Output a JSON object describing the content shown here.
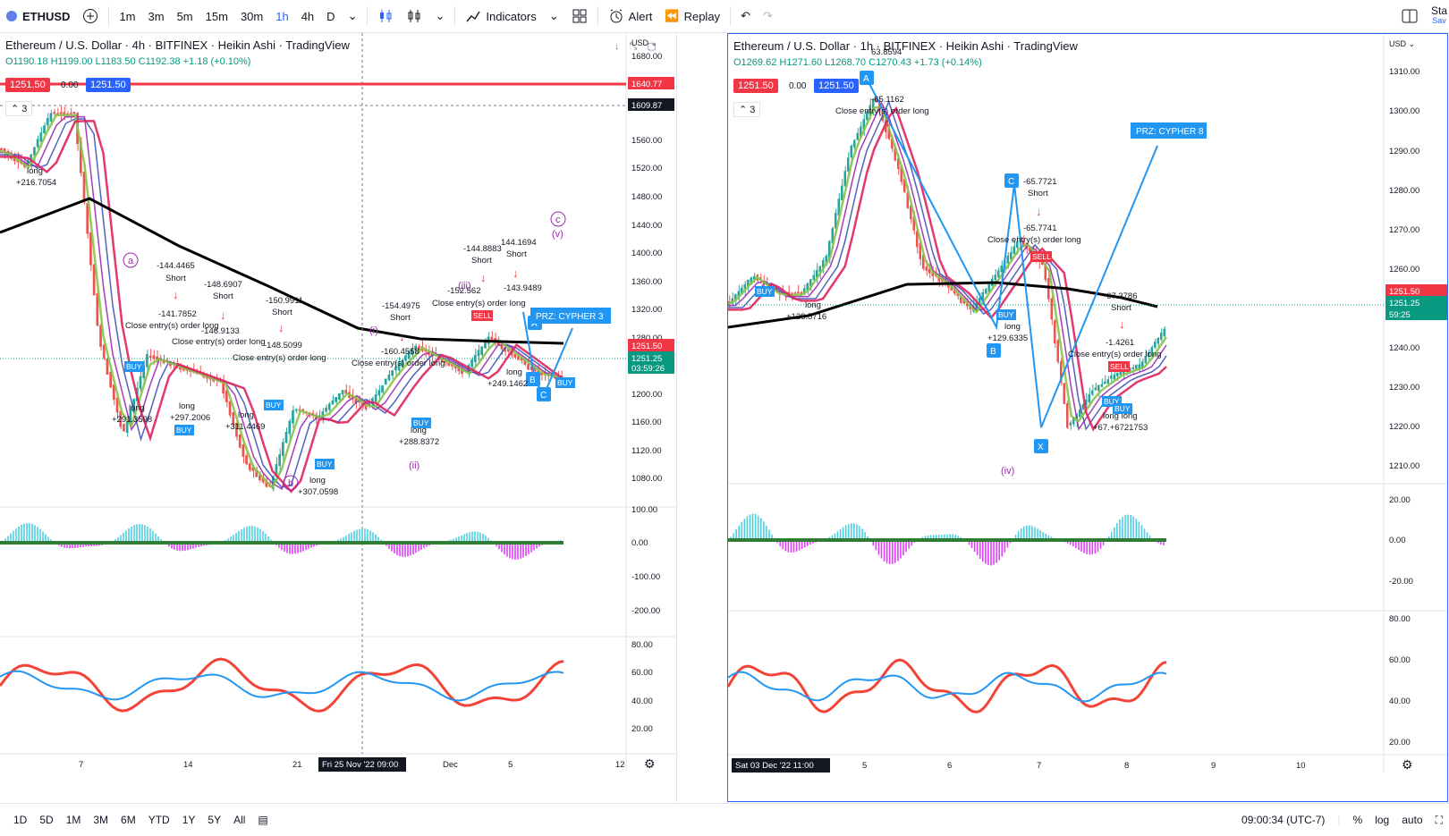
{
  "toolbar": {
    "symbol": "ETHUSD",
    "intervals": [
      "1m",
      "3m",
      "5m",
      "15m",
      "30m",
      "1h",
      "4h",
      "D"
    ],
    "active_interval": "1h",
    "indicators_label": "Indicators",
    "alert_label": "Alert",
    "replay_label": "Replay",
    "right_label": "Sta",
    "right_sub": "Sav"
  },
  "left_chart": {
    "title": "Ethereum / U.S. Dollar · 4h · BITFINEX · Heikin Ashi · TradingView",
    "ohlc": {
      "o": "O1190.18",
      "h": "H1199.00",
      "l": "L1183.50",
      "c": "C1192.38",
      "chg": "+1.18 (+0.10%)"
    },
    "sell_price": "1251.50",
    "spread": "0.00",
    "buy_price": "1251.50",
    "indicator_count": "3",
    "axis_currency": "USD",
    "price_ticks": [
      "1680.00",
      "1640.77",
      "1609.87",
      "1560.00",
      "1520.00",
      "1480.00",
      "1440.00",
      "1400.00",
      "1360.00",
      "1320.00",
      "1280.00",
      "1251.50",
      "1251.25",
      "03:59:26",
      "1200.00",
      "1160.00",
      "1120.00",
      "1080.00"
    ],
    "macd_ticks": [
      "100.00",
      "0.00",
      "-100.00",
      "-200.00"
    ],
    "rsi_ticks": [
      "80.00",
      "60.00",
      "40.00",
      "20.00"
    ],
    "time_ticks": [
      "7",
      "14",
      "21",
      "Fri 25 Nov '22  09:00",
      "Dec",
      "5",
      "12"
    ],
    "annotations": [
      {
        "text": "long",
        "cls": "t"
      },
      {
        "text": "+216.7054",
        "cls": "t"
      },
      {
        "text": "-144.4465",
        "cls": "t"
      },
      {
        "text": "Short",
        "cls": "t"
      },
      {
        "text": "-141.7852",
        "cls": "t"
      },
      {
        "text": "Close entry(s) order long",
        "cls": "t"
      },
      {
        "text": "-148.6907",
        "cls": "t"
      },
      {
        "text": "Short",
        "cls": "t"
      },
      {
        "text": "-146.9133",
        "cls": "t"
      },
      {
        "text": "Close entry(s) order long",
        "cls": "t"
      },
      {
        "text": "-150.9911",
        "cls": "t"
      },
      {
        "text": "Short",
        "cls": "t"
      },
      {
        "text": "-148.5099",
        "cls": "t"
      },
      {
        "text": "Close entry(s) order long",
        "cls": "t"
      },
      {
        "text": "-154.4975",
        "cls": "t"
      },
      {
        "text": "Short",
        "cls": "t"
      },
      {
        "text": "-160.4558",
        "cls": "t"
      },
      {
        "text": "Close entry(s) order long",
        "cls": "t"
      },
      {
        "text": "-144.8883",
        "cls": "t"
      },
      {
        "text": "Short",
        "cls": "t"
      },
      {
        "text": "144.1694",
        "cls": "t"
      },
      {
        "text": "Short",
        "cls": "t"
      },
      {
        "text": "-152.562",
        "cls": "t"
      },
      {
        "text": "-143.9489",
        "cls": "t"
      },
      {
        "text": "Close entry(s) order long",
        "cls": "t"
      },
      {
        "text": "long",
        "cls": "t"
      },
      {
        "text": "+249.1462",
        "cls": "t"
      },
      {
        "text": "long",
        "cls": "t"
      },
      {
        "text": "+291.3598",
        "cls": "t"
      },
      {
        "text": "long",
        "cls": "t"
      },
      {
        "text": "+297.2006",
        "cls": "t"
      },
      {
        "text": "long",
        "cls": "t"
      },
      {
        "text": "+311.4469",
        "cls": "t"
      },
      {
        "text": "long",
        "cls": "t"
      },
      {
        "text": "+307.0598",
        "cls": "t"
      },
      {
        "text": "long",
        "cls": "t"
      },
      {
        "text": "+288.8372",
        "cls": "t"
      }
    ],
    "waves": [
      "a",
      "b",
      "c",
      "(i)",
      "(ii)",
      "(iii)",
      "(v)"
    ],
    "prz_label": "PRZ: CYPHER 3",
    "buy_tag": "BUY",
    "sell_tag": "SELL",
    "harmonic": [
      "A",
      "B",
      "C"
    ]
  },
  "right_chart": {
    "title": "Ethereum / U.S. Dollar · 1h · BITFINEX · Heikin Ashi · TradingView",
    "ohlc": {
      "o": "O1269.62",
      "h": "H1271.60",
      "l": "L1268.70",
      "c": "C1270.43",
      "chg": "+1.73 (+0.14%)"
    },
    "sell_price": "1251.50",
    "spread": "0.00",
    "buy_price": "1251.50",
    "indicator_count": "3",
    "axis_currency": "USD",
    "price_ticks": [
      "1310.00",
      "1300.00",
      "1290.00",
      "1280.00",
      "1270.00",
      "1260.00",
      "1251.50",
      "1251.25",
      "59:25",
      "1240.00",
      "1230.00",
      "1220.00",
      "1210.00"
    ],
    "macd_ticks": [
      "20.00",
      "0.00",
      "-20.00"
    ],
    "rsi_ticks": [
      "80.00",
      "60.00",
      "40.00",
      "20.00"
    ],
    "time_ticks": [
      "Sat 03 Dec '22  11:00",
      "5",
      "6",
      "7",
      "8",
      "9",
      "10"
    ],
    "annotations": [
      {
        "text": "-65.1162",
        "cls": "t"
      },
      {
        "text": "Close entry(s) order long",
        "cls": "t"
      },
      {
        "text": "-65.7721",
        "cls": "t"
      },
      {
        "text": "Short",
        "cls": "t"
      },
      {
        "text": "-65.7741",
        "cls": "t"
      },
      {
        "text": "Close entry(s) order long",
        "cls": "t"
      },
      {
        "text": "long",
        "cls": "t"
      },
      {
        "text": "+128.5716",
        "cls": "t"
      },
      {
        "text": "long",
        "cls": "t"
      },
      {
        "text": "+129.6335",
        "cls": "t"
      },
      {
        "text": "-67.3786",
        "cls": "t"
      },
      {
        "text": "Short",
        "cls": "t"
      },
      {
        "text": "-1.4261",
        "cls": "t"
      },
      {
        "text": "Close entry(s) order long",
        "cls": "t"
      },
      {
        "text": "long long",
        "cls": "t"
      },
      {
        "text": "+67.+6721753",
        "cls": "t"
      },
      {
        "text": "63.8594",
        "cls": "t"
      }
    ],
    "waves": [
      "(iv)"
    ],
    "prz_label": "PRZ: CYPHER 8",
    "harmonic": [
      "A",
      "B",
      "C",
      "X"
    ]
  },
  "bottom_bar": {
    "ranges": [
      "1D",
      "5D",
      "1M",
      "3M",
      "6M",
      "YTD",
      "1Y",
      "5Y",
      "All"
    ],
    "clock": "09:00:34 (UTC-7)",
    "percent": "%",
    "log": "log",
    "auto": "auto"
  },
  "colors": {
    "accent": "#2962ff",
    "sell": "#f23645",
    "buy": "#2962ff",
    "up": "#089981",
    "down": "#f23645",
    "ema_black": "#000000",
    "ema_red": "#e0245e",
    "macd_pos": "#4dd0e1",
    "macd_neg": "#e040fb",
    "rsi_red": "#f44336",
    "rsi_blue": "#2196f3",
    "wave": "#9c27b0"
  }
}
